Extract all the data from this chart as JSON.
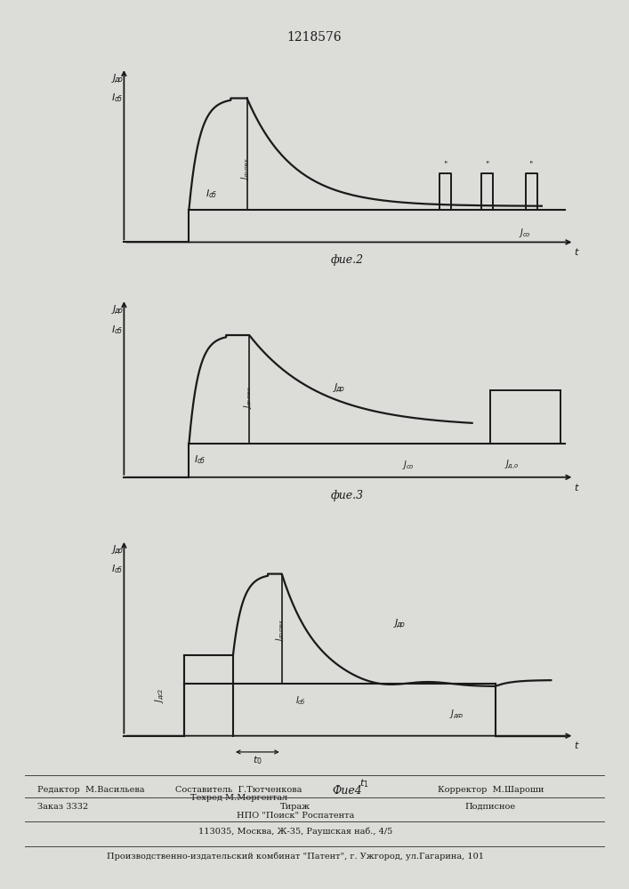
{
  "title": "1218576",
  "fig2_label": "фие.2",
  "fig3_label": "фие.3",
  "fig4_label": "Фие4",
  "bg_color": "#e8e8e4",
  "line_color": "#1a1a1a",
  "font_size": 8,
  "title_font_size": 10,
  "footer": {
    "line1_left": "Редактор  М.Васильева",
    "line1_mid1": "Составитель  Г.Тютченкова",
    "line1_mid2": "Техред М.Моргентал",
    "line1_right": "Корректор  М.Шароши",
    "line2_left": "Заказ 3332",
    "line2_mid": "Тираж",
    "line2_right": "Подписное",
    "line3": "НПО \"Поиск\" Роспатента",
    "line4": "113035, Москва, Ж-35, Раушская наб., 4/5",
    "line5": "Производственно-издательский комбинат \"Патент\", г. Ужгород, ул.Гагарина, 101"
  }
}
